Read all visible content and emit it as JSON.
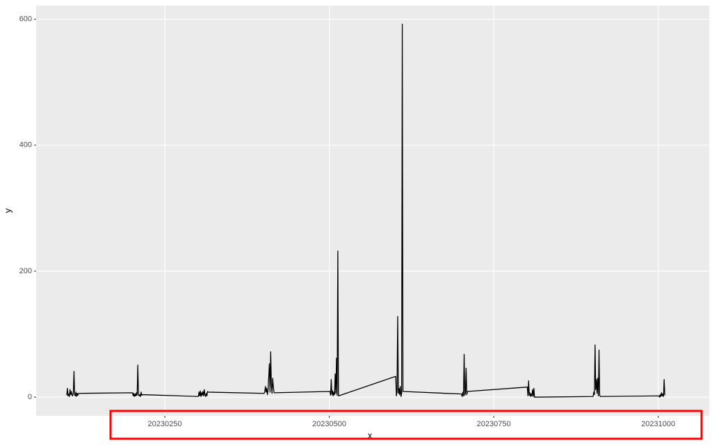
{
  "chart_data": {
    "type": "line",
    "x_label": "x",
    "y_label": "y",
    "color": "#000000",
    "grid": true,
    "x": [
      20230101,
      20230102,
      20230103,
      20230104,
      20230105,
      20230106,
      20230107,
      20230108,
      20230109,
      20230110,
      20230111,
      20230112,
      20230113,
      20230114,
      20230115,
      20230116,
      20230117,
      20230118,
      20230119,
      20230201,
      20230202,
      20230203,
      20230204,
      20230205,
      20230206,
      20230207,
      20230208,
      20230209,
      20230210,
      20230211,
      20230212,
      20230213,
      20230214,
      20230215,
      20230216,
      20230301,
      20230302,
      20230303,
      20230304,
      20230305,
      20230306,
      20230307,
      20230308,
      20230309,
      20230310,
      20230311,
      20230312,
      20230313,
      20230314,
      20230315,
      20230316,
      20230401,
      20230402,
      20230403,
      20230404,
      20230405,
      20230406,
      20230407,
      20230408,
      20230409,
      20230410,
      20230411,
      20230412,
      20230413,
      20230414,
      20230415,
      20230416,
      20230501,
      20230502,
      20230503,
      20230504,
      20230505,
      20230506,
      20230507,
      20230508,
      20230509,
      20230510,
      20230511,
      20230512,
      20230513,
      20230514,
      20230601,
      20230602,
      20230603,
      20230604,
      20230605,
      20230606,
      20230607,
      20230608,
      20230609,
      20230610,
      20230611,
      20230612,
      20230701,
      20230702,
      20230703,
      20230704,
      20230705,
      20230706,
      20230707,
      20230708,
      20230709,
      20230710,
      20230801,
      20230802,
      20230803,
      20230804,
      20230805,
      20230806,
      20230807,
      20230808,
      20230809,
      20230810,
      20230811,
      20230812,
      20230901,
      20230902,
      20230903,
      20230904,
      20230905,
      20230906,
      20230907,
      20230908,
      20230909,
      20230910,
      20230911,
      20230912,
      20231001,
      20231002,
      20231003,
      20231004,
      20231005,
      20231006,
      20231007,
      20231008,
      20231009,
      20231010
    ],
    "values": [
      3,
      14,
      2,
      5,
      1,
      12,
      4,
      9,
      3,
      2,
      7,
      41,
      4,
      2,
      8,
      1,
      6,
      3,
      6,
      7,
      2,
      6,
      1,
      5,
      2,
      7,
      3,
      51,
      5,
      2,
      4,
      1,
      8,
      3,
      4,
      1,
      8,
      2,
      10,
      1,
      7,
      3,
      9,
      2,
      12,
      4,
      1,
      6,
      2,
      9,
      8,
      6,
      9,
      17,
      8,
      14,
      4,
      12,
      32,
      53,
      8,
      72,
      20,
      6,
      30,
      17,
      7,
      9,
      3,
      28,
      4,
      10,
      2,
      8,
      4,
      37,
      6,
      62,
      3,
      232,
      2,
      33,
      2,
      10,
      128,
      6,
      14,
      4,
      17,
      1,
      6,
      592,
      9,
      5,
      1,
      8,
      2,
      68,
      3,
      7,
      46,
      4,
      9,
      16,
      2,
      26,
      3,
      7,
      1,
      5,
      2,
      12,
      1,
      14,
      0,
      1,
      8,
      4,
      83,
      12,
      28,
      6,
      30,
      2,
      75,
      3,
      1,
      2,
      0,
      4,
      1,
      7,
      2,
      5,
      1,
      28,
      3
    ],
    "xlim": [
      20230054.5,
      20231077.5
    ],
    "xticks": [
      20230250,
      20230500,
      20230750,
      20231000
    ],
    "ylim": [
      -29.6,
      621.6
    ],
    "yticks": [
      0,
      200,
      400,
      600
    ]
  }
}
